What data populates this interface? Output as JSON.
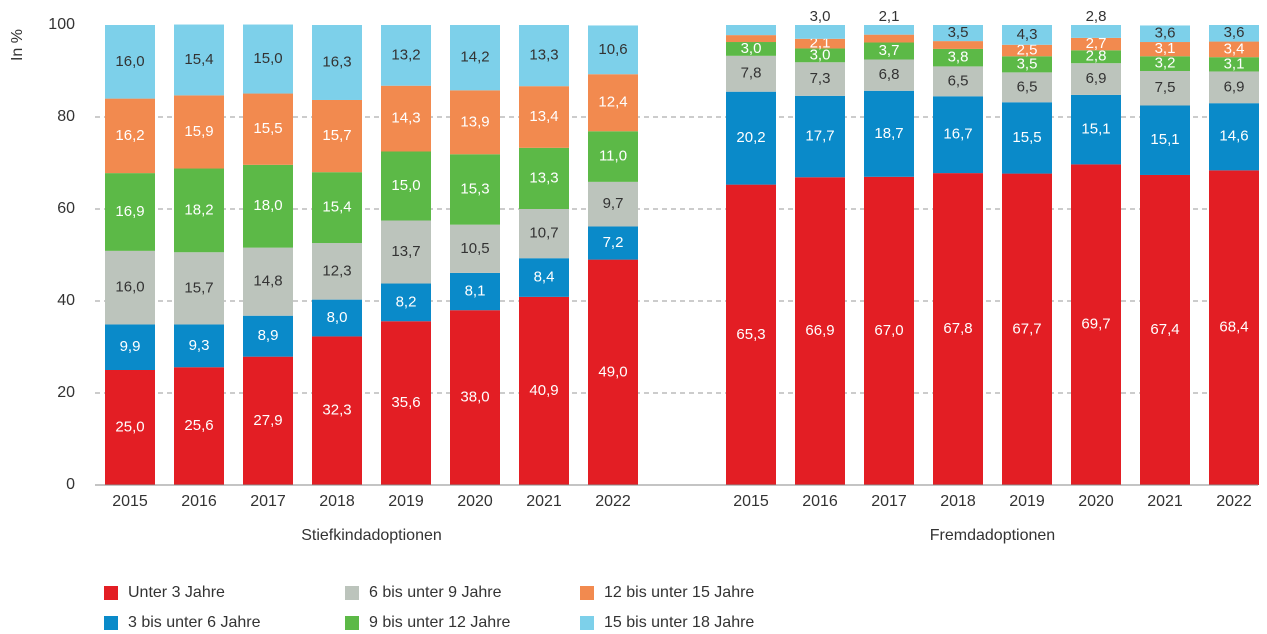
{
  "chart_data": {
    "type": "bar",
    "stacked": true,
    "ylabel": "In %",
    "group_labels": [
      "Stiefkindadoptionen",
      "Fremdadoptionen"
    ],
    "categories": [
      "2015",
      "2016",
      "2017",
      "2018",
      "2019",
      "2020",
      "2021",
      "2022",
      "2015",
      "2016",
      "2017",
      "2018",
      "2019",
      "2020",
      "2021",
      "2022"
    ],
    "ylim": [
      0,
      100
    ],
    "yticks": [
      0,
      20,
      40,
      60,
      80,
      100
    ],
    "grid": true,
    "series": [
      {
        "name": "Unter 3 Jahre",
        "color": "#e31e24",
        "label_color": "#ffffff",
        "values": [
          25.0,
          25.6,
          27.9,
          32.3,
          35.6,
          38.0,
          40.9,
          49.0,
          65.3,
          66.9,
          67.0,
          67.8,
          67.7,
          69.7,
          67.4,
          68.4
        ],
        "value_labels": [
          "25,0",
          "25,6",
          "27,9",
          "32,3",
          "35,6",
          "38,0",
          "40,9",
          "49,0",
          "65,3",
          "66,9",
          "67,0",
          "67,8",
          "67,7",
          "69,7",
          "67,4",
          "68,4"
        ]
      },
      {
        "name": "3 bis unter 6 Jahre",
        "color": "#0a8ac9",
        "label_color": "#ffffff",
        "values": [
          9.9,
          9.3,
          8.9,
          8.0,
          8.2,
          8.1,
          8.4,
          7.2,
          20.2,
          17.7,
          18.7,
          16.7,
          15.5,
          15.1,
          15.1,
          14.6
        ],
        "value_labels": [
          "9,9",
          "9,3",
          "8,9",
          "8,0",
          "8,2",
          "8,1",
          "8,4",
          "7,2",
          "20,2",
          "17,7",
          "18,7",
          "16,7",
          "15,5",
          "15,1",
          "15,1",
          "14,6"
        ]
      },
      {
        "name": "6 bis unter 9 Jahre",
        "color": "#bcc4bc",
        "label_color": "#333333",
        "values": [
          16.0,
          15.7,
          14.8,
          12.3,
          13.7,
          10.5,
          10.7,
          9.7,
          7.8,
          7.3,
          6.8,
          6.5,
          6.5,
          6.9,
          7.5,
          6.9
        ],
        "value_labels": [
          "16,0",
          "15,7",
          "14,8",
          "12,3",
          "13,7",
          "10,5",
          "10,7",
          "9,7",
          "7,8",
          "7,3",
          "6,8",
          "6,5",
          "6,5",
          "6,9",
          "7,5",
          "6,9"
        ]
      },
      {
        "name": "9 bis unter 12 Jahre",
        "color": "#5cb947",
        "label_color": "#ffffff",
        "values": [
          16.9,
          18.2,
          18.0,
          15.4,
          15.0,
          15.3,
          13.3,
          11.0,
          3.0,
          3.0,
          3.7,
          3.8,
          3.5,
          2.8,
          3.2,
          3.1
        ],
        "value_labels": [
          "16,9",
          "18,2",
          "18,0",
          "15,4",
          "15,0",
          "15,3",
          "13,3",
          "11,0",
          "3,0",
          "3,0",
          "3,7",
          "3,8",
          "3,5",
          "2,8",
          "3,2",
          "3,1"
        ]
      },
      {
        "name": "12 bis unter 15 Jahre",
        "color": "#f28a4f",
        "label_color": "#ffffff",
        "values": [
          16.2,
          15.9,
          15.5,
          15.7,
          14.3,
          13.9,
          13.4,
          12.4,
          1.5,
          2.1,
          1.7,
          1.7,
          2.5,
          2.7,
          3.1,
          3.4
        ],
        "value_labels": [
          "16,2",
          "15,9",
          "15,5",
          "15,7",
          "14,3",
          "13,9",
          "13,4",
          "12,4",
          null,
          "2,1",
          null,
          null,
          "2,5",
          "2,7",
          "3,1",
          "3,4"
        ]
      },
      {
        "name": "15 bis unter 18 Jahre",
        "color": "#7dd0ea",
        "label_color": "#333333",
        "values": [
          16.0,
          15.4,
          15.0,
          16.3,
          13.2,
          14.2,
          13.3,
          10.6,
          2.2,
          3.0,
          2.1,
          3.5,
          4.3,
          2.8,
          3.6,
          3.6
        ],
        "value_labels": [
          "16,0",
          "15,4",
          "15,0",
          "16,3",
          "13,2",
          "14,2",
          "13,3",
          "10,6",
          null,
          "3,0",
          "2,1",
          "3,5",
          "4,3",
          "2,8",
          "3,6",
          "3,6"
        ]
      }
    ]
  }
}
